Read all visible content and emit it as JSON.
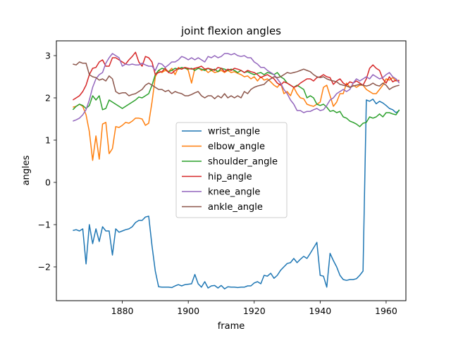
{
  "chart_data": {
    "type": "line",
    "title": "joint flexion angles",
    "xlabel": "frame",
    "ylabel": "angles",
    "xlim": [
      1860,
      1966
    ],
    "ylim": [
      -2.8,
      3.35
    ],
    "xticks": [
      1880,
      1900,
      1920,
      1940,
      1960
    ],
    "yticks": [
      -2,
      -1,
      0,
      1,
      2,
      3
    ],
    "grid": false,
    "legend_position": "center",
    "x": [
      1865,
      1866,
      1867,
      1868,
      1869,
      1870,
      1871,
      1872,
      1873,
      1874,
      1875,
      1876,
      1877,
      1878,
      1879,
      1880,
      1881,
      1882,
      1883,
      1884,
      1885,
      1886,
      1887,
      1888,
      1889,
      1890,
      1891,
      1892,
      1893,
      1894,
      1895,
      1896,
      1897,
      1898,
      1899,
      1900,
      1901,
      1902,
      1903,
      1904,
      1905,
      1906,
      1907,
      1908,
      1909,
      1910,
      1911,
      1912,
      1913,
      1914,
      1915,
      1916,
      1917,
      1918,
      1919,
      1920,
      1921,
      1922,
      1923,
      1924,
      1925,
      1926,
      1927,
      1928,
      1929,
      1930,
      1931,
      1932,
      1933,
      1934,
      1935,
      1936,
      1937,
      1938,
      1939,
      1940,
      1941,
      1942,
      1943,
      1944,
      1945,
      1946,
      1947,
      1948,
      1949,
      1950,
      1951,
      1952,
      1953,
      1954,
      1955,
      1956,
      1957,
      1958,
      1959,
      1960,
      1961,
      1962,
      1963,
      1964
    ],
    "series": [
      {
        "name": "wrist_angle",
        "color": "#1f77b4",
        "values": [
          -1.14,
          -1.12,
          -1.15,
          -1.1,
          -1.93,
          -1.0,
          -1.45,
          -1.1,
          -1.4,
          -1.05,
          -1.15,
          -1.15,
          -1.72,
          -1.1,
          -1.18,
          -1.15,
          -1.12,
          -1.1,
          -1.05,
          -0.95,
          -0.9,
          -0.9,
          -0.82,
          -0.8,
          -1.5,
          -2.1,
          -2.47,
          -2.48,
          -2.48,
          -2.48,
          -2.49,
          -2.45,
          -2.42,
          -2.45,
          -2.42,
          -2.41,
          -2.4,
          -2.18,
          -2.4,
          -2.48,
          -2.35,
          -2.5,
          -2.45,
          -2.44,
          -2.5,
          -2.44,
          -2.52,
          -2.47,
          -2.48,
          -2.48,
          -2.49,
          -2.48,
          -2.48,
          -2.45,
          -2.45,
          -2.38,
          -2.35,
          -2.4,
          -2.2,
          -2.22,
          -2.15,
          -2.27,
          -2.2,
          -2.08,
          -2.0,
          -1.92,
          -1.9,
          -1.8,
          -1.9,
          -1.82,
          -1.75,
          -1.8,
          -1.68,
          -1.55,
          -1.42,
          -2.2,
          -2.22,
          -2.48,
          -1.68,
          -1.85,
          -2.0,
          -2.2,
          -2.3,
          -2.32,
          -2.3,
          -2.3,
          -2.28,
          -2.2,
          -2.1,
          1.95,
          1.92,
          1.97,
          1.86,
          1.92,
          1.88,
          1.82,
          1.75,
          1.72,
          1.65,
          1.7
        ]
      },
      {
        "name": "elbow_angle",
        "color": "#ff7f0e",
        "values": [
          1.78,
          1.8,
          1.85,
          1.8,
          1.6,
          1.2,
          0.52,
          1.1,
          0.55,
          1.38,
          1.42,
          0.68,
          0.8,
          1.32,
          1.3,
          1.35,
          1.42,
          1.4,
          1.45,
          1.52,
          1.52,
          1.5,
          1.35,
          1.4,
          1.9,
          2.5,
          2.65,
          2.6,
          2.65,
          2.62,
          2.7,
          2.55,
          2.72,
          2.68,
          2.72,
          2.65,
          2.35,
          2.7,
          2.72,
          2.65,
          2.68,
          2.6,
          2.65,
          2.6,
          2.62,
          2.65,
          2.6,
          2.65,
          2.6,
          2.62,
          2.58,
          2.55,
          2.5,
          2.52,
          2.45,
          2.5,
          2.4,
          2.5,
          2.42,
          2.45,
          2.38,
          2.3,
          2.25,
          2.35,
          2.1,
          2.15,
          2.05,
          2.25,
          2.1,
          2.0,
          1.98,
          1.85,
          1.82,
          1.8,
          1.85,
          1.9,
          2.25,
          2.3,
          2.05,
          1.8,
          1.9,
          2.1,
          2.1,
          2.35,
          2.25,
          2.3,
          2.25,
          2.3,
          2.3,
          2.2,
          2.15,
          2.1,
          2.1,
          2.2,
          2.3,
          2.45,
          2.42,
          2.48,
          2.4,
          2.42
        ]
      },
      {
        "name": "shoulder_angle",
        "color": "#2ca02c",
        "values": [
          1.72,
          1.8,
          1.85,
          1.82,
          1.75,
          1.82,
          2.05,
          1.95,
          2.05,
          1.72,
          1.75,
          1.95,
          1.9,
          1.85,
          1.8,
          1.75,
          1.8,
          1.85,
          1.9,
          1.95,
          2.02,
          2.0,
          2.05,
          2.1,
          2.3,
          2.55,
          2.65,
          2.7,
          2.68,
          2.62,
          2.65,
          2.7,
          2.68,
          2.72,
          2.7,
          2.68,
          2.7,
          2.65,
          2.7,
          2.68,
          2.65,
          2.7,
          2.65,
          2.68,
          2.62,
          2.7,
          2.68,
          2.65,
          2.68,
          2.65,
          2.6,
          2.65,
          2.6,
          2.62,
          2.58,
          2.55,
          2.58,
          2.6,
          2.55,
          2.6,
          2.58,
          2.55,
          2.6,
          2.5,
          2.45,
          2.35,
          2.3,
          2.25,
          2.3,
          2.25,
          2.2,
          2.0,
          2.05,
          2.0,
          1.85,
          1.82,
          1.85,
          1.78,
          1.68,
          1.7,
          1.65,
          1.68,
          1.55,
          1.52,
          1.45,
          1.42,
          1.38,
          1.32,
          1.4,
          1.42,
          1.55,
          1.52,
          1.55,
          1.62,
          1.55,
          1.65,
          1.65,
          1.62,
          1.6,
          1.72
        ]
      },
      {
        "name": "hip_angle",
        "color": "#d62728",
        "values": [
          1.95,
          2.0,
          2.05,
          2.15,
          2.3,
          2.55,
          2.7,
          2.72,
          2.85,
          2.9,
          2.75,
          2.75,
          2.95,
          2.95,
          2.9,
          2.85,
          2.8,
          2.9,
          2.98,
          3.08,
          2.85,
          2.75,
          2.98,
          2.95,
          2.85,
          2.55,
          2.6,
          2.62,
          2.7,
          2.6,
          2.58,
          2.65,
          2.7,
          2.68,
          2.72,
          2.7,
          2.68,
          2.7,
          2.72,
          2.75,
          2.68,
          2.7,
          2.68,
          2.65,
          2.72,
          2.7,
          2.62,
          2.68,
          2.65,
          2.7,
          2.68,
          2.65,
          2.6,
          2.65,
          2.62,
          2.6,
          2.55,
          2.48,
          2.52,
          2.55,
          2.5,
          2.45,
          2.35,
          2.3,
          2.38,
          2.35,
          2.3,
          2.25,
          2.28,
          2.35,
          2.4,
          2.45,
          2.45,
          2.4,
          2.48,
          2.5,
          2.55,
          2.5,
          2.48,
          2.32,
          2.4,
          2.45,
          2.35,
          2.3,
          2.38,
          2.35,
          2.4,
          2.35,
          2.3,
          2.45,
          2.7,
          2.78,
          2.7,
          2.65,
          2.45,
          2.35,
          2.5,
          2.38,
          2.42,
          2.4
        ]
      },
      {
        "name": "knee_angle",
        "color": "#9467bd",
        "values": [
          1.45,
          1.48,
          1.52,
          1.6,
          1.72,
          1.95,
          2.25,
          2.45,
          2.55,
          2.6,
          2.82,
          2.95,
          3.05,
          3.0,
          2.95,
          2.75,
          2.8,
          2.78,
          2.8,
          2.78,
          2.78,
          2.82,
          2.78,
          2.75,
          2.75,
          2.65,
          2.82,
          2.8,
          2.72,
          2.78,
          2.85,
          2.85,
          2.9,
          2.98,
          2.95,
          2.9,
          2.95,
          2.9,
          2.95,
          2.9,
          2.85,
          2.98,
          2.95,
          3.0,
          2.95,
          2.98,
          3.05,
          3.05,
          3.02,
          3.05,
          3.0,
          2.98,
          3.0,
          2.95,
          2.95,
          2.85,
          2.8,
          2.72,
          2.72,
          2.65,
          2.6,
          2.55,
          2.45,
          2.35,
          2.2,
          2.1,
          1.95,
          1.85,
          1.7,
          1.7,
          1.65,
          1.68,
          1.68,
          1.72,
          1.75,
          1.7,
          1.72,
          1.82,
          1.95,
          2.0,
          2.1,
          2.15,
          2.2,
          2.15,
          2.2,
          2.35,
          2.45,
          2.4,
          2.45,
          2.5,
          2.45,
          2.55,
          2.5,
          2.45,
          2.48,
          2.55,
          2.6,
          2.5,
          2.45,
          2.35
        ]
      },
      {
        "name": "ankle_angle",
        "color": "#8c564b",
        "values": [
          2.8,
          2.78,
          2.85,
          2.82,
          2.82,
          2.55,
          2.5,
          2.48,
          2.42,
          2.45,
          2.4,
          2.52,
          2.45,
          2.15,
          2.1,
          2.12,
          2.12,
          2.05,
          2.08,
          2.1,
          2.15,
          2.2,
          2.3,
          2.35,
          2.3,
          2.25,
          2.2,
          2.2,
          2.15,
          2.18,
          2.1,
          2.15,
          2.12,
          2.1,
          2.05,
          2.05,
          2.08,
          2.12,
          2.15,
          2.05,
          2.0,
          2.05,
          2.05,
          1.98,
          2.05,
          2.0,
          2.1,
          2.0,
          2.05,
          2.0,
          2.05,
          2.0,
          2.15,
          2.1,
          2.2,
          2.25,
          2.28,
          2.3,
          2.32,
          2.4,
          2.45,
          2.5,
          2.48,
          2.5,
          2.55,
          2.6,
          2.58,
          2.6,
          2.62,
          2.65,
          2.68,
          2.65,
          2.62,
          2.55,
          2.5,
          2.48,
          2.5,
          2.45,
          2.42,
          2.4,
          2.38,
          2.32,
          2.3,
          2.28,
          2.25,
          2.28,
          2.3,
          2.32,
          2.3,
          2.28,
          2.3,
          2.35,
          2.3,
          2.28,
          2.35,
          2.3,
          2.2,
          2.25,
          2.28,
          2.3
        ]
      }
    ]
  }
}
